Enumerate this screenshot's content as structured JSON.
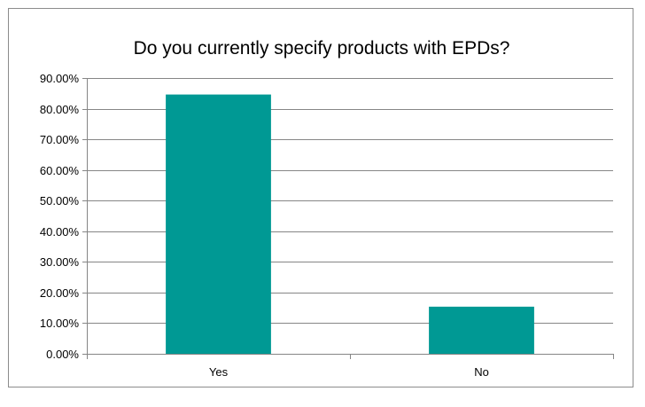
{
  "chart_data": {
    "type": "bar",
    "title": "Do you currently specify products with EPDs?",
    "xlabel": "",
    "ylabel": "",
    "categories": [
      "Yes",
      "No"
    ],
    "values": [
      84.62,
      15.38
    ],
    "ylim": [
      0,
      90
    ],
    "ytick_values": [
      0,
      10,
      20,
      30,
      40,
      50,
      60,
      70,
      80,
      90
    ],
    "ytick_labels": [
      "0.00%",
      "10.00%",
      "20.00%",
      "30.00%",
      "40.00%",
      "50.00%",
      "60.00%",
      "70.00%",
      "80.00%",
      "90.00%"
    ],
    "grid": true,
    "legend": "none",
    "bar_color": "#009994",
    "gridline_color": "#868686"
  }
}
